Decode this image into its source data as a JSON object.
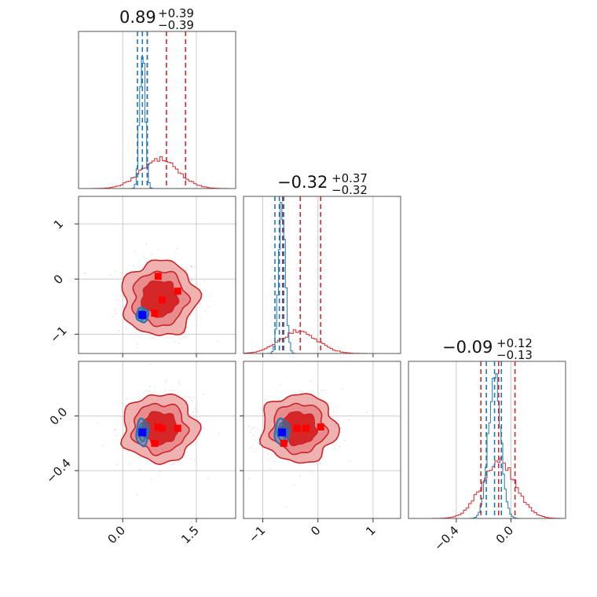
{
  "colors": {
    "red": "#d62728",
    "red_dark": "#c9252a",
    "red_light": "#f3c4c4",
    "blue": "#1f77b4",
    "marker_blue": "#0000ff",
    "marker_red": "#ff0000"
  },
  "chart_data": {
    "type": "corner",
    "grid": true,
    "params": [
      {
        "range": [
          -0.9,
          2.3
        ],
        "ticks": [
          0.0,
          1.5
        ],
        "tick_labels": [
          "0.0",
          "1.5"
        ]
      },
      {
        "range": [
          -1.35,
          1.5
        ],
        "ticks": [
          -1,
          0,
          1
        ],
        "tick_labels": [
          "−1",
          "0",
          "1"
        ]
      },
      {
        "range": [
          -0.75,
          0.4
        ],
        "ticks": [
          -0.4,
          0.0
        ],
        "tick_labels": [
          "−0.4",
          "0.0"
        ]
      }
    ],
    "titles": [
      {
        "value": "0.89",
        "plus": "+0.39",
        "minus": "−0.39"
      },
      {
        "value": "−0.32",
        "plus": "+0.37",
        "minus": "−0.32"
      },
      {
        "value": "−0.09",
        "plus": "+0.12",
        "minus": "−0.13"
      }
    ],
    "quantiles": {
      "red": [
        [
          0.5,
          0.89,
          1.28
        ],
        [
          -0.64,
          -0.32,
          0.05
        ],
        [
          -0.22,
          -0.09,
          0.03
        ]
      ],
      "blue": [
        [
          0.3,
          0.4,
          0.5
        ],
        [
          -0.78,
          -0.7,
          -0.62
        ],
        [
          -0.18,
          -0.12,
          -0.07
        ]
      ]
    },
    "contours": {
      "red": {
        "center": [
          0.75,
          -0.35,
          -0.09
        ],
        "sigma": [
          0.38,
          0.34,
          0.125
        ]
      },
      "blue": {
        "center": [
          0.4,
          -0.65,
          -0.12
        ],
        "sigma": [
          0.055,
          0.06,
          0.045
        ]
      }
    },
    "markers": {
      "red": [
        [
          0.72,
          0.05,
          -0.08
        ],
        [
          0.8,
          -0.38,
          -0.09
        ],
        [
          1.12,
          -0.22,
          -0.09
        ],
        [
          0.65,
          -0.62,
          -0.2
        ]
      ],
      "blue": [
        [
          0.4,
          -0.65,
          -0.12
        ]
      ]
    }
  }
}
